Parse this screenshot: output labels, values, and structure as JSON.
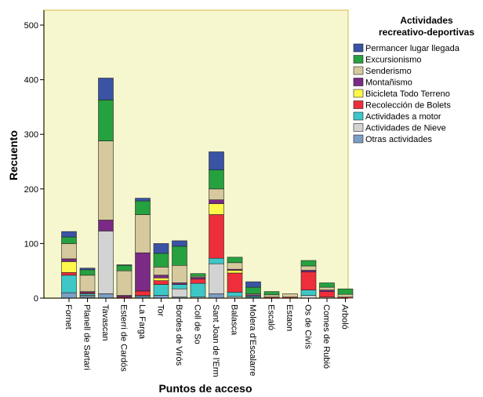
{
  "chart_data": {
    "type": "bar",
    "stacked": true,
    "xlabel": "Puntos de acceso",
    "ylabel": "Recuento",
    "ylim": [
      0,
      520
    ],
    "yticks": [
      0,
      100,
      200,
      300,
      400,
      500
    ],
    "grid": false,
    "legend_position": "right",
    "legend_title_lines": [
      "Actividades",
      "recreativo-deportivas"
    ],
    "categories": [
      "Fornet",
      "Planell de Sartari",
      "Tavascan",
      "Esterri de Cardós",
      "La Farga",
      "Tor",
      "Bordes de Virós",
      "Coll de So",
      "Sant Joan de l'Erm",
      "Balasca",
      "Molera d'Escalarre",
      "Escaló",
      "Estaon",
      "Os de Civís",
      "Comes de Rubió",
      "Arboló"
    ],
    "series": [
      {
        "name": "Otras actividades",
        "color": "#7c9fc6",
        "values": [
          10,
          3,
          8,
          0,
          3,
          5,
          2,
          0,
          8,
          0,
          2,
          0,
          0,
          0,
          0,
          0
        ]
      },
      {
        "name": "Actividades de Nieve",
        "color": "#d3d3d3",
        "values": [
          0,
          2,
          115,
          0,
          0,
          0,
          15,
          2,
          55,
          3,
          0,
          0,
          0,
          5,
          2,
          0
        ]
      },
      {
        "name": "Actividades a motor",
        "color": "#3ec7c7",
        "values": [
          32,
          3,
          0,
          0,
          2,
          20,
          8,
          25,
          10,
          8,
          2,
          0,
          0,
          10,
          0,
          0
        ]
      },
      {
        "name": "Recolección de Bolets",
        "color": "#ee2e3a",
        "values": [
          5,
          2,
          0,
          2,
          8,
          7,
          0,
          8,
          80,
          35,
          0,
          2,
          2,
          33,
          10,
          2
        ]
      },
      {
        "name": "Bicicleta Todo Terreno",
        "color": "#fff84a",
        "values": [
          20,
          0,
          0,
          0,
          0,
          5,
          0,
          0,
          20,
          5,
          0,
          0,
          0,
          0,
          0,
          0
        ]
      },
      {
        "name": "Montañismo",
        "color": "#7b2a85",
        "values": [
          5,
          2,
          20,
          3,
          70,
          5,
          3,
          3,
          7,
          2,
          2,
          0,
          0,
          3,
          3,
          0
        ]
      },
      {
        "name": "Senderismo",
        "color": "#d5c99d",
        "values": [
          28,
          30,
          145,
          45,
          70,
          15,
          32,
          2,
          20,
          12,
          2,
          4,
          6,
          8,
          5,
          5
        ]
      },
      {
        "name": "Excursionismo",
        "color": "#26a13f",
        "values": [
          12,
          10,
          75,
          10,
          25,
          25,
          35,
          5,
          35,
          10,
          12,
          6,
          0,
          10,
          8,
          10
        ]
      },
      {
        "name": "Permancer lugar llegada",
        "color": "#3a53a4",
        "values": [
          10,
          3,
          40,
          1,
          5,
          18,
          10,
          0,
          33,
          0,
          10,
          0,
          0,
          0,
          0,
          0
        ]
      }
    ],
    "legend_order": [
      "Permancer lugar llegada",
      "Excursionismo",
      "Senderismo",
      "Montañismo",
      "Bicicleta Todo Terreno",
      "Recolección de Bolets",
      "Actividades a motor",
      "Actividades de Nieve",
      "Otras actividades"
    ]
  }
}
